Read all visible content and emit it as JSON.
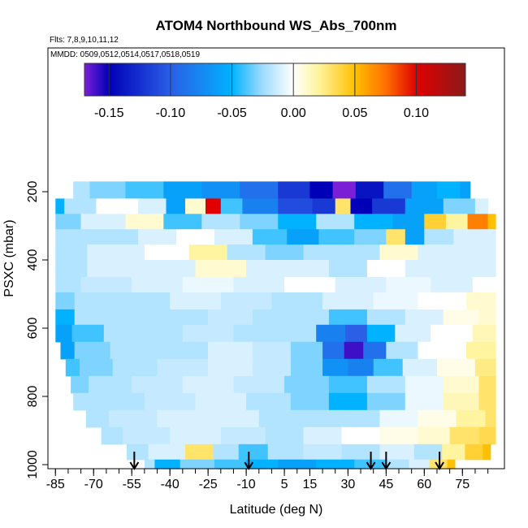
{
  "chart_data": {
    "type": "heatmap",
    "title": "ATOM4 Northbound WS_Abs_700nm",
    "subtitle_flights": "Flts: 7,8,9,10,11,12",
    "subtitle_dates": "MMDD: 0509,0512,0514,0517,0518,0519",
    "xlabel": "Latitude (deg N)",
    "ylabel": "PSXC (mbar)",
    "xlim": [
      -87,
      88
    ],
    "ylim": [
      1000,
      0
    ],
    "x_ticks": [
      -85,
      -70,
      -55,
      -40,
      -25,
      -10,
      5,
      15,
      30,
      45,
      60,
      75
    ],
    "x_tick_labels": [
      "-85",
      "-70",
      "-55",
      "-40",
      "-25",
      "-10",
      "5",
      "15",
      "30",
      "45",
      "60",
      "75"
    ],
    "y_ticks": [
      200,
      400,
      600,
      800,
      1000
    ],
    "y_tick_labels": [
      "200",
      "400",
      "600",
      "800",
      "1000"
    ],
    "colorbar": {
      "range": [
        -0.17,
        0.14
      ],
      "ticks": [
        -0.15,
        -0.1,
        -0.05,
        0.0,
        0.05,
        0.1
      ],
      "tick_labels": [
        "-0.15",
        "-0.10",
        "-0.05",
        "0.00",
        "0.05",
        "0.10"
      ],
      "stops": [
        {
          "v": -0.17,
          "color": "#7a1fd6"
        },
        {
          "v": -0.15,
          "color": "#0000b8"
        },
        {
          "v": -0.1,
          "color": "#2a5fe6"
        },
        {
          "v": -0.05,
          "color": "#00b2ff"
        },
        {
          "v": -0.025,
          "color": "#9fdcff"
        },
        {
          "v": 0.0,
          "color": "#ffffff"
        },
        {
          "v": 0.02,
          "color": "#fff4a0"
        },
        {
          "v": 0.05,
          "color": "#ffc000"
        },
        {
          "v": 0.075,
          "color": "#ff7000"
        },
        {
          "v": 0.1,
          "color": "#e00000"
        },
        {
          "v": 0.14,
          "color": "#8b1a1a"
        }
      ]
    },
    "arrow_latitudes": [
      -54,
      -9,
      39,
      45,
      66
    ],
    "rows": [
      {
        "p_top": 170,
        "p_bot": 220,
        "x0": -78,
        "x1": 78,
        "cells": [
          {
            "x": -78,
            "v": -0.02
          },
          {
            "x": -65,
            "v": -0.03
          },
          {
            "x": -50,
            "v": -0.04
          },
          {
            "x": -35,
            "v": -0.06
          },
          {
            "x": -20,
            "v": -0.07
          },
          {
            "x": -5,
            "v": -0.09
          },
          {
            "x": 10,
            "v": -0.12
          },
          {
            "x": 20,
            "v": -0.15
          },
          {
            "x": 28,
            "v": -0.17
          },
          {
            "x": 38,
            "v": -0.14
          },
          {
            "x": 50,
            "v": -0.09
          },
          {
            "x": 60,
            "v": -0.06
          },
          {
            "x": 70,
            "v": -0.05
          },
          {
            "x": 78,
            "v": -0.06
          }
        ]
      },
      {
        "p_top": 220,
        "p_bot": 265,
        "x0": -85,
        "x1": 85,
        "cells": [
          {
            "x": -85,
            "v": -0.05
          },
          {
            "x": -78,
            "v": -0.02
          },
          {
            "x": -60,
            "v": 0.0
          },
          {
            "x": -45,
            "v": -0.01
          },
          {
            "x": -38,
            "v": -0.06
          },
          {
            "x": -30,
            "v": 0.01
          },
          {
            "x": -22,
            "v": 0.1
          },
          {
            "x": -18,
            "v": -0.04
          },
          {
            "x": -5,
            "v": -0.08
          },
          {
            "x": 10,
            "v": -0.11
          },
          {
            "x": 22,
            "v": -0.12
          },
          {
            "x": 28,
            "v": 0.03
          },
          {
            "x": 34,
            "v": -0.15
          },
          {
            "x": 45,
            "v": -0.12
          },
          {
            "x": 60,
            "v": -0.06
          },
          {
            "x": 75,
            "v": -0.03
          },
          {
            "x": 85,
            "v": -0.01
          }
        ]
      },
      {
        "p_top": 265,
        "p_bot": 310,
        "x0": -85,
        "x1": 88,
        "cells": [
          {
            "x": -85,
            "v": -0.03
          },
          {
            "x": -65,
            "v": -0.01
          },
          {
            "x": -50,
            "v": 0.01
          },
          {
            "x": -35,
            "v": -0.04
          },
          {
            "x": -20,
            "v": -0.02
          },
          {
            "x": -5,
            "v": -0.03
          },
          {
            "x": 10,
            "v": -0.05
          },
          {
            "x": 25,
            "v": -0.02
          },
          {
            "x": 40,
            "v": -0.05
          },
          {
            "x": 55,
            "v": -0.06
          },
          {
            "x": 65,
            "v": 0.04
          },
          {
            "x": 72,
            "v": 0.02
          },
          {
            "x": 82,
            "v": 0.07
          },
          {
            "x": 88,
            "v": 0.05
          }
        ]
      },
      {
        "p_top": 310,
        "p_bot": 355,
        "x0": -85,
        "x1": 88,
        "cells": [
          {
            "x": -85,
            "v": -0.02
          },
          {
            "x": -60,
            "v": -0.02
          },
          {
            "x": -45,
            "v": -0.01
          },
          {
            "x": -30,
            "v": 0.0
          },
          {
            "x": -15,
            "v": -0.01
          },
          {
            "x": 0,
            "v": -0.04
          },
          {
            "x": 12,
            "v": -0.06
          },
          {
            "x": 25,
            "v": -0.04
          },
          {
            "x": 40,
            "v": -0.03
          },
          {
            "x": 50,
            "v": 0.03
          },
          {
            "x": 55,
            "v": -0.06
          },
          {
            "x": 65,
            "v": -0.02
          },
          {
            "x": 78,
            "v": -0.01
          },
          {
            "x": 88,
            "v": -0.01
          }
        ]
      },
      {
        "p_top": 355,
        "p_bot": 400,
        "x0": -85,
        "x1": 88,
        "cells": [
          {
            "x": -85,
            "v": -0.02
          },
          {
            "x": -60,
            "v": -0.01
          },
          {
            "x": -40,
            "v": 0.0
          },
          {
            "x": -25,
            "v": 0.02
          },
          {
            "x": -10,
            "v": -0.02
          },
          {
            "x": 5,
            "v": -0.03
          },
          {
            "x": 20,
            "v": -0.02
          },
          {
            "x": 35,
            "v": -0.02
          },
          {
            "x": 50,
            "v": 0.01
          },
          {
            "x": 65,
            "v": -0.01
          },
          {
            "x": 88,
            "v": -0.01
          }
        ]
      },
      {
        "p_top": 400,
        "p_bot": 450,
        "x0": -85,
        "x1": 88,
        "cells": [
          {
            "x": -85,
            "v": -0.02
          },
          {
            "x": -60,
            "v": -0.01
          },
          {
            "x": -40,
            "v": -0.01
          },
          {
            "x": -20,
            "v": 0.01
          },
          {
            "x": 0,
            "v": -0.01
          },
          {
            "x": 15,
            "v": -0.01
          },
          {
            "x": 30,
            "v": -0.02
          },
          {
            "x": 45,
            "v": 0.0
          },
          {
            "x": 60,
            "v": -0.01
          },
          {
            "x": 88,
            "v": -0.01
          }
        ]
      },
      {
        "p_top": 450,
        "p_bot": 495,
        "x0": -85,
        "x1": 88,
        "cells": [
          {
            "x": -85,
            "v": -0.02
          },
          {
            "x": -65,
            "v": -0.015
          },
          {
            "x": -45,
            "v": -0.01
          },
          {
            "x": -25,
            "v": -0.005
          },
          {
            "x": -5,
            "v": -0.01
          },
          {
            "x": 15,
            "v": 0.0
          },
          {
            "x": 35,
            "v": -0.01
          },
          {
            "x": 55,
            "v": -0.005
          },
          {
            "x": 70,
            "v": -0.01
          },
          {
            "x": 88,
            "v": 0.0
          }
        ]
      },
      {
        "p_top": 495,
        "p_bot": 545,
        "x0": -85,
        "x1": 88,
        "cells": [
          {
            "x": -85,
            "v": -0.03
          },
          {
            "x": -70,
            "v": -0.02
          },
          {
            "x": -50,
            "v": -0.02
          },
          {
            "x": -30,
            "v": -0.01
          },
          {
            "x": -10,
            "v": -0.015
          },
          {
            "x": 10,
            "v": -0.02
          },
          {
            "x": 30,
            "v": -0.01
          },
          {
            "x": 50,
            "v": -0.005
          },
          {
            "x": 65,
            "v": 0.0
          },
          {
            "x": 88,
            "v": 0.01
          }
        ]
      },
      {
        "p_top": 545,
        "p_bot": 590,
        "x0": -85,
        "x1": 88,
        "cells": [
          {
            "x": -85,
            "v": -0.05
          },
          {
            "x": -70,
            "v": -0.02
          },
          {
            "x": -55,
            "v": -0.02
          },
          {
            "x": -35,
            "v": -0.02
          },
          {
            "x": -15,
            "v": -0.015
          },
          {
            "x": 0,
            "v": -0.02
          },
          {
            "x": 15,
            "v": -0.02
          },
          {
            "x": 30,
            "v": -0.04
          },
          {
            "x": 45,
            "v": -0.02
          },
          {
            "x": 60,
            "v": -0.01
          },
          {
            "x": 75,
            "v": 0.005
          },
          {
            "x": 88,
            "v": 0.01
          }
        ]
      },
      {
        "p_top": 590,
        "p_bot": 640,
        "x0": -85,
        "x1": 88,
        "cells": [
          {
            "x": -85,
            "v": -0.06
          },
          {
            "x": -72,
            "v": -0.04
          },
          {
            "x": -60,
            "v": -0.02
          },
          {
            "x": -45,
            "v": -0.02
          },
          {
            "x": -25,
            "v": -0.015
          },
          {
            "x": -5,
            "v": -0.02
          },
          {
            "x": 10,
            "v": -0.02
          },
          {
            "x": 25,
            "v": -0.08
          },
          {
            "x": 33,
            "v": -0.1
          },
          {
            "x": 42,
            "v": -0.05
          },
          {
            "x": 55,
            "v": -0.01
          },
          {
            "x": 70,
            "v": 0.0
          },
          {
            "x": 88,
            "v": 0.015
          }
        ]
      },
      {
        "p_top": 640,
        "p_bot": 690,
        "x0": -83,
        "x1": 88,
        "cells": [
          {
            "x": -83,
            "v": -0.06
          },
          {
            "x": -72,
            "v": -0.03
          },
          {
            "x": -55,
            "v": -0.02
          },
          {
            "x": -35,
            "v": -0.02
          },
          {
            "x": -15,
            "v": -0.01
          },
          {
            "x": 0,
            "v": -0.015
          },
          {
            "x": 15,
            "v": -0.03
          },
          {
            "x": 25,
            "v": -0.09
          },
          {
            "x": 32,
            "v": -0.16
          },
          {
            "x": 40,
            "v": -0.09
          },
          {
            "x": 50,
            "v": -0.02
          },
          {
            "x": 65,
            "v": 0.0
          },
          {
            "x": 88,
            "v": 0.02
          }
        ]
      },
      {
        "p_top": 690,
        "p_bot": 740,
        "x0": -81,
        "x1": 88,
        "cells": [
          {
            "x": -81,
            "v": -0.04
          },
          {
            "x": -70,
            "v": -0.03
          },
          {
            "x": -55,
            "v": -0.02
          },
          {
            "x": -35,
            "v": -0.015
          },
          {
            "x": -15,
            "v": -0.01
          },
          {
            "x": 0,
            "v": -0.015
          },
          {
            "x": 15,
            "v": -0.03
          },
          {
            "x": 25,
            "v": -0.07
          },
          {
            "x": 35,
            "v": -0.08
          },
          {
            "x": 45,
            "v": -0.04
          },
          {
            "x": 58,
            "v": -0.01
          },
          {
            "x": 72,
            "v": 0.005
          },
          {
            "x": 88,
            "v": 0.025
          }
        ]
      },
      {
        "p_top": 740,
        "p_bot": 790,
        "x0": -79,
        "x1": 88,
        "cells": [
          {
            "x": -79,
            "v": -0.03
          },
          {
            "x": -65,
            "v": -0.02
          },
          {
            "x": -45,
            "v": -0.015
          },
          {
            "x": -25,
            "v": -0.01
          },
          {
            "x": -5,
            "v": -0.015
          },
          {
            "x": 15,
            "v": -0.03
          },
          {
            "x": 30,
            "v": -0.04
          },
          {
            "x": 45,
            "v": -0.02
          },
          {
            "x": 60,
            "v": -0.005
          },
          {
            "x": 75,
            "v": 0.01
          },
          {
            "x": 88,
            "v": 0.03
          }
        ]
      },
      {
        "p_top": 790,
        "p_bot": 840,
        "x0": -78,
        "x1": 88,
        "cells": [
          {
            "x": -78,
            "v": -0.02
          },
          {
            "x": -60,
            "v": -0.02
          },
          {
            "x": -40,
            "v": -0.015
          },
          {
            "x": -20,
            "v": -0.01
          },
          {
            "x": 0,
            "v": -0.02
          },
          {
            "x": 15,
            "v": -0.03
          },
          {
            "x": 30,
            "v": -0.05
          },
          {
            "x": 45,
            "v": -0.03
          },
          {
            "x": 60,
            "v": -0.005
          },
          {
            "x": 75,
            "v": 0.015
          },
          {
            "x": 88,
            "v": 0.03
          }
        ]
      },
      {
        "p_top": 840,
        "p_bot": 890,
        "x0": -73,
        "x1": 88,
        "cells": [
          {
            "x": -73,
            "v": -0.02
          },
          {
            "x": -55,
            "v": -0.015
          },
          {
            "x": -35,
            "v": -0.01
          },
          {
            "x": -15,
            "v": -0.01
          },
          {
            "x": 5,
            "v": -0.02
          },
          {
            "x": 20,
            "v": -0.02
          },
          {
            "x": 35,
            "v": -0.02
          },
          {
            "x": 50,
            "v": -0.005
          },
          {
            "x": 65,
            "v": 0.005
          },
          {
            "x": 80,
            "v": 0.02
          },
          {
            "x": 88,
            "v": 0.03
          }
        ]
      },
      {
        "p_top": 890,
        "p_bot": 940,
        "x0": -67,
        "x1": 88,
        "cells": [
          {
            "x": -67,
            "v": -0.02
          },
          {
            "x": -50,
            "v": -0.015
          },
          {
            "x": -30,
            "v": -0.01
          },
          {
            "x": -10,
            "v": -0.015
          },
          {
            "x": 5,
            "v": -0.02
          },
          {
            "x": 20,
            "v": -0.01
          },
          {
            "x": 35,
            "v": 0.0
          },
          {
            "x": 50,
            "v": 0.005
          },
          {
            "x": 65,
            "v": 0.01
          },
          {
            "x": 75,
            "v": 0.03
          },
          {
            "x": 88,
            "v": 0.035
          }
        ]
      },
      {
        "p_top": 940,
        "p_bot": 985,
        "x0": -57,
        "x1": 86,
        "cells": [
          {
            "x": -57,
            "v": -0.02
          },
          {
            "x": -40,
            "v": -0.01
          },
          {
            "x": -28,
            "v": 0.03
          },
          {
            "x": -18,
            "v": -0.02
          },
          {
            "x": -8,
            "v": -0.04
          },
          {
            "x": 5,
            "v": -0.02
          },
          {
            "x": 20,
            "v": -0.015
          },
          {
            "x": 35,
            "v": -0.02
          },
          {
            "x": 50,
            "v": -0.01
          },
          {
            "x": 62,
            "v": -0.02
          },
          {
            "x": 72,
            "v": 0.02
          },
          {
            "x": 80,
            "v": 0.04
          },
          {
            "x": 86,
            "v": 0.05
          }
        ]
      },
      {
        "p_top": 985,
        "p_bot": 1030,
        "x0": -50,
        "x1": 72,
        "cells": [
          {
            "x": -50,
            "v": -0.02
          },
          {
            "x": -42,
            "v": -0.05
          },
          {
            "x": -30,
            "v": -0.03
          },
          {
            "x": -15,
            "v": -0.04
          },
          {
            "x": -5,
            "v": -0.05
          },
          {
            "x": 10,
            "v": -0.06
          },
          {
            "x": 25,
            "v": -0.05
          },
          {
            "x": 40,
            "v": -0.04
          },
          {
            "x": 50,
            "v": -0.02
          },
          {
            "x": 58,
            "v": -0.01
          },
          {
            "x": 66,
            "v": 0.03
          },
          {
            "x": 72,
            "v": 0.05
          }
        ]
      }
    ]
  }
}
